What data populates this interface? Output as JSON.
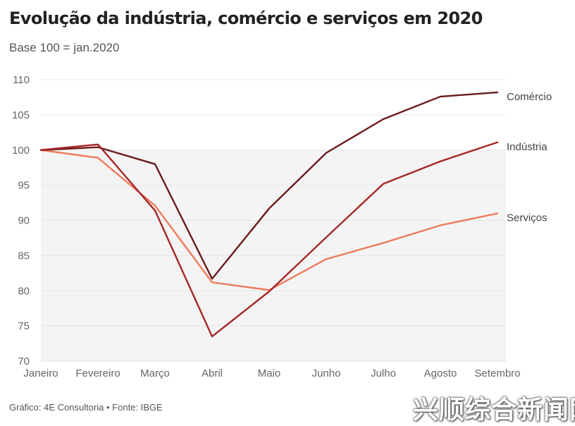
{
  "chart_data": {
    "type": "line",
    "title": "Evolução da indústria, comércio e serviços em 2020",
    "subtitle": "Base 100 = jan.2020",
    "categories": [
      "Janeiro",
      "Fevereiro",
      "Março",
      "Abril",
      "Maio",
      "Junho",
      "Julho",
      "Agosto",
      "Setembro"
    ],
    "yticks": [
      70,
      75,
      80,
      85,
      90,
      95,
      100,
      105,
      110
    ],
    "ylim": [
      70,
      110
    ],
    "shaded_range": [
      70,
      100
    ],
    "grid": true,
    "legend": "inline-right",
    "series": [
      {
        "name": "Comércio",
        "color": "#6b1a1a",
        "values": [
          100,
          100.4,
          98,
          81.7,
          91.7,
          99.6,
          104.4,
          107.6,
          108.2
        ]
      },
      {
        "name": "Indústria",
        "color": "#a52626",
        "values": [
          100,
          100.8,
          91.4,
          73.5,
          79.9,
          87.6,
          95.2,
          98.4,
          101.1
        ]
      },
      {
        "name": "Serviços",
        "color": "#ee7b5b",
        "values": [
          100,
          98.9,
          92.1,
          81.2,
          80.1,
          84.5,
          86.8,
          89.3,
          91
        ]
      }
    ]
  },
  "footer": "Gráfico: 4E Consultoria • Fonte: IBGE",
  "watermark": "兴顺综合新闻网"
}
